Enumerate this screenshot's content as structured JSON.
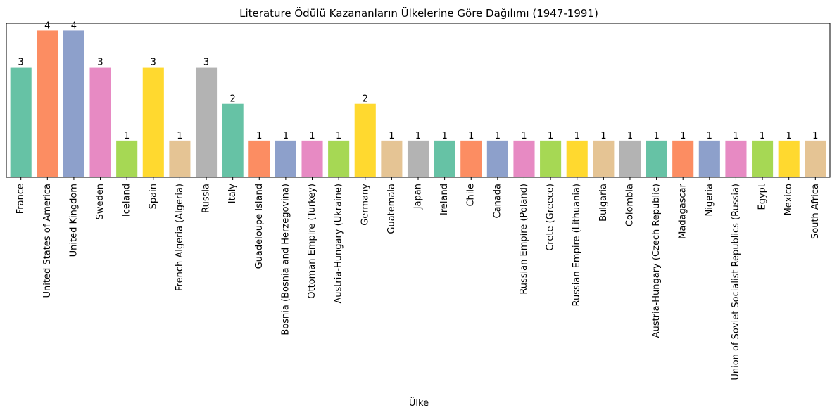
{
  "chart_data": {
    "type": "bar",
    "title": "Literature Ödülü Kazananların Ülkelerine Göre Dağılımı (1947-1991)",
    "xlabel": "Ülke",
    "ylabel": "",
    "ylim": [
      0,
      4.2
    ],
    "grid": false,
    "categories": [
      "France",
      "United States of America",
      "United Kingdom",
      "Sweden",
      "Iceland",
      "Spain",
      "French Algeria (Algeria)",
      "Russia",
      "Italy",
      "Guadeloupe Island",
      "Bosnia (Bosnia and Herzegovina)",
      "Ottoman Empire (Turkey)",
      "Austria-Hungary (Ukraine)",
      "Germany",
      "Guatemala",
      "Japan",
      "Ireland",
      "Chile",
      "Canada",
      "Russian Empire (Poland)",
      "Crete (Greece)",
      "Russian Empire (Lithuania)",
      "Bulgaria",
      "Colombia",
      "Austria-Hungary (Czech Republic)",
      "Madagascar",
      "Nigeria",
      "Union of Soviet Socialist Republics (Russia)",
      "Egypt",
      "Mexico",
      "South Africa"
    ],
    "values": [
      3,
      4,
      4,
      3,
      1,
      3,
      1,
      3,
      2,
      1,
      1,
      1,
      1,
      2,
      1,
      1,
      1,
      1,
      1,
      1,
      1,
      1,
      1,
      1,
      1,
      1,
      1,
      1,
      1,
      1,
      1
    ],
    "palette": [
      "#66c2a5",
      "#fc8d62",
      "#8da0cb",
      "#e78ac3",
      "#a6d854",
      "#ffd92f",
      "#e5c494",
      "#b3b3b3"
    ]
  }
}
